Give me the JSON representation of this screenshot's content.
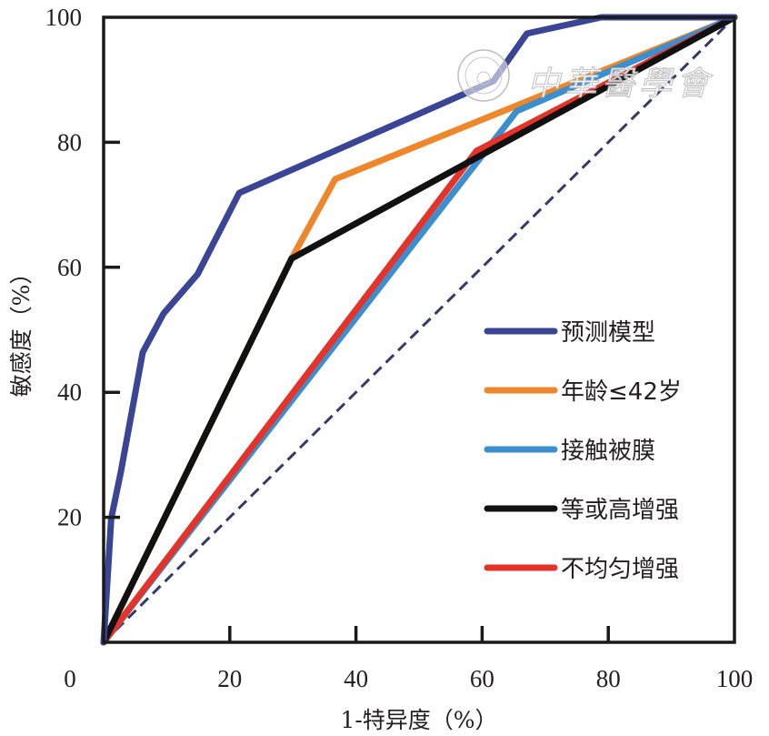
{
  "chart_data": {
    "type": "line",
    "title": "",
    "xlabel": "1-特异度（%）",
    "ylabel": "敏感度（%）",
    "xlim": [
      0,
      100
    ],
    "ylim": [
      0,
      100
    ],
    "x_ticks": [
      0,
      20,
      40,
      60,
      80,
      100
    ],
    "x_tick_labels": [
      "0",
      "20",
      "40",
      "60",
      "80",
      "100"
    ],
    "y_ticks": [
      20,
      40,
      60,
      80,
      100
    ],
    "y_tick_labels": [
      "20",
      "40",
      "60",
      "80",
      "100"
    ],
    "grid": false,
    "legend_position": "bottom-right",
    "series": [
      {
        "name": "预测模型",
        "color": "#3a4595",
        "points": [
          [
            0,
            0
          ],
          [
            1.2,
            19.8
          ],
          [
            2.7,
            27.1
          ],
          [
            6.2,
            46.4
          ],
          [
            9.5,
            52.6
          ],
          [
            14.9,
            58.9
          ],
          [
            21.5,
            71.9
          ],
          [
            61.8,
            89.8
          ],
          [
            67.1,
            97.4
          ],
          [
            78.9,
            100
          ],
          [
            100,
            100
          ]
        ]
      },
      {
        "name": "年龄≤42岁",
        "color": "#f0862a",
        "points": [
          [
            0,
            0
          ],
          [
            29.8,
            61.4
          ],
          [
            36.7,
            74.1
          ],
          [
            100,
            100
          ]
        ]
      },
      {
        "name": "接触被膜",
        "color": "#3b8fce",
        "points": [
          [
            0,
            0
          ],
          [
            65.5,
            85.0
          ],
          [
            100,
            100
          ]
        ]
      },
      {
        "name": "等或高增强",
        "color": "#111111",
        "points": [
          [
            0,
            0
          ],
          [
            29.8,
            61.4
          ],
          [
            100,
            100
          ]
        ]
      },
      {
        "name": "不均匀增强",
        "color": "#e5332a",
        "points": [
          [
            0,
            0
          ],
          [
            59.1,
            78.6
          ],
          [
            100,
            100
          ]
        ]
      }
    ],
    "reference_line": {
      "name": "diagonal",
      "style": "dashed",
      "color": "#353a6b",
      "points": [
        [
          0,
          0
        ],
        [
          100,
          100
        ]
      ]
    }
  },
  "watermark": {
    "text": "中華醫學會"
  }
}
